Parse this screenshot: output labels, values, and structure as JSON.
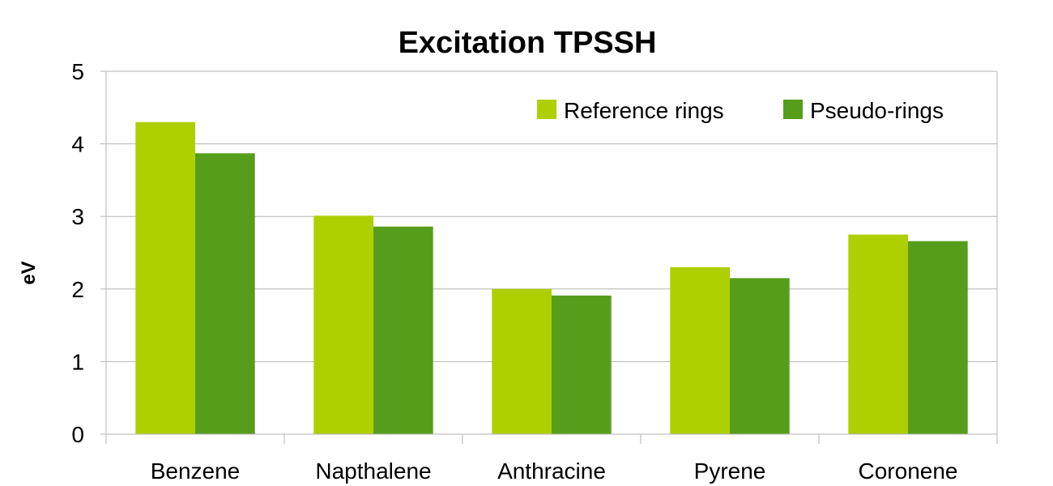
{
  "chart_data": {
    "type": "bar",
    "title": "Excitation TPSSH",
    "xlabel": "",
    "ylabel": "eV",
    "ylim": [
      0,
      5
    ],
    "yticks": [
      0,
      1,
      2,
      3,
      4,
      5
    ],
    "grid": true,
    "legend_position": "top-right",
    "categories": [
      "Benzene",
      "Napthalene",
      "Anthracine",
      "Pyrene",
      "Coronene"
    ],
    "series": [
      {
        "name": "Reference rings",
        "color": "#aecf00",
        "values": [
          4.3,
          3.01,
          2.0,
          2.3,
          2.75
        ]
      },
      {
        "name": "Pseudo-rings",
        "color": "#579d1c",
        "values": [
          3.87,
          2.86,
          1.91,
          2.15,
          2.66
        ]
      }
    ]
  }
}
